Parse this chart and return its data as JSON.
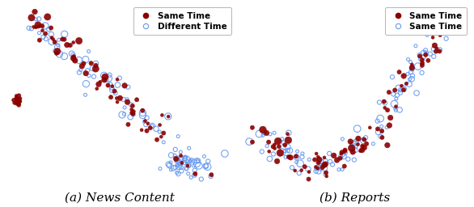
{
  "fig_width": 5.86,
  "fig_height": 2.56,
  "dpi": 100,
  "background_color": "#ffffff",
  "subplot_a": {
    "title": "(a) News Content",
    "legend_labels": [
      "Same Time",
      "Different Time"
    ],
    "red_color": "#8B0000",
    "blue_color": "#6699EE"
  },
  "subplot_b": {
    "title": "(b) Reports",
    "legend_labels": [
      "Same Time",
      "Same Time"
    ],
    "red_color": "#8B0000",
    "blue_color": "#6699EE"
  },
  "title_fontsize": 11,
  "legend_fontsize": 7.5,
  "seed_a": 42,
  "seed_b": 123
}
